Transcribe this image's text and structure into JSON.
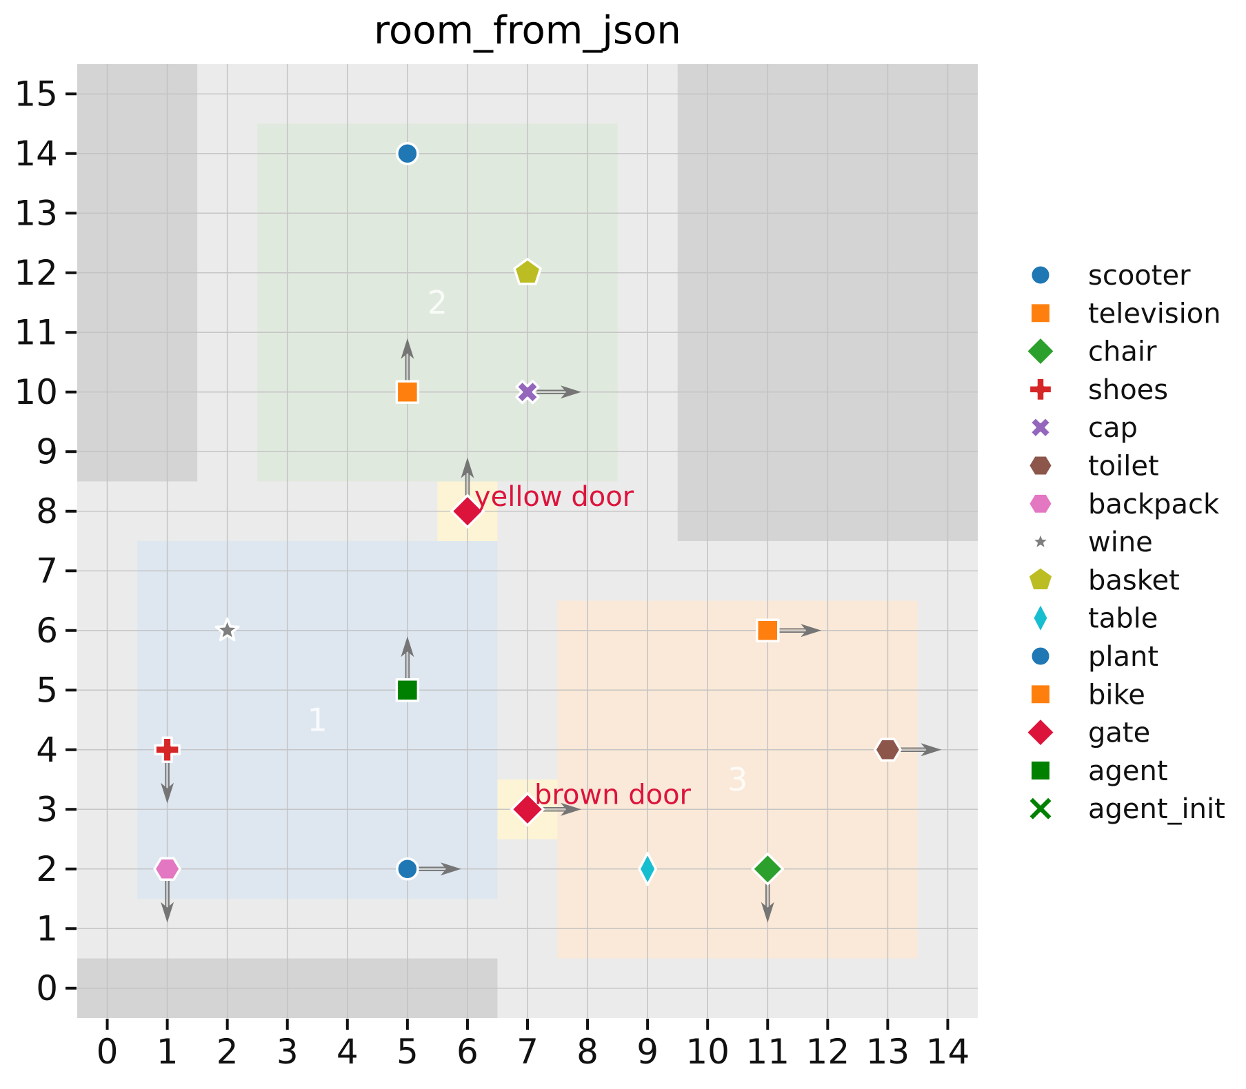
{
  "chart_data": {
    "type": "scatter",
    "title": "room_from_json",
    "xlabel": "",
    "ylabel": "",
    "x_ticks": [
      0,
      1,
      2,
      3,
      4,
      5,
      6,
      7,
      8,
      9,
      10,
      11,
      12,
      13,
      14
    ],
    "y_ticks": [
      0,
      1,
      2,
      3,
      4,
      5,
      6,
      7,
      8,
      9,
      10,
      11,
      12,
      13,
      14,
      15
    ],
    "xlim": [
      -0.5,
      14.5
    ],
    "ylim": [
      -0.5,
      15.5
    ],
    "grid": true,
    "legend_position": "right-outside",
    "colors": {
      "figure_background": "#ffffff",
      "bounds_background": "#ebebeb",
      "obstacle": "#d4d4d4",
      "gridline": "#c2c2c2",
      "tick_text": "#111111",
      "arrow": "#757575",
      "door_patch": "#fdf3d5",
      "door_label": "#dc143c",
      "room_label": "#ffffff"
    },
    "bounds_rect": {
      "x0": -0.5,
      "y0": -0.5,
      "x1": 14.5,
      "y1": 15.5
    },
    "obstacles": [
      {
        "name": "obstacle-top-left",
        "x0": -0.5,
        "y0": 8.5,
        "x1": 1.5,
        "y1": 15.5
      },
      {
        "name": "obstacle-top-right",
        "x0": 9.5,
        "y0": 7.5,
        "x1": 14.5,
        "y1": 15.5
      },
      {
        "name": "obstacle-bottom",
        "x0": -0.5,
        "y0": -0.5,
        "x1": 6.5,
        "y1": 0.5
      }
    ],
    "rooms": [
      {
        "label": "1",
        "x0": 0.5,
        "y0": 1.5,
        "x1": 6.5,
        "y1": 7.5,
        "color": "#dee7f0",
        "label_x": 3.5,
        "label_y": 4.5
      },
      {
        "label": "2",
        "x0": 2.5,
        "y0": 8.5,
        "x1": 8.5,
        "y1": 14.5,
        "color": "#e0e9dd",
        "label_x": 5.5,
        "label_y": 11.5
      },
      {
        "label": "3",
        "x0": 7.5,
        "y0": 0.5,
        "x1": 13.5,
        "y1": 6.5,
        "color": "#fae9d8",
        "label_x": 10.5,
        "label_y": 3.5
      }
    ],
    "doors": [
      {
        "label": "yellow door",
        "x": 6,
        "y": 8,
        "patch": {
          "x0": 5.5,
          "y0": 7.5,
          "x1": 6.5,
          "y1": 8.5
        },
        "marker": "diamond",
        "color": "#dc143c",
        "orientation": "up"
      },
      {
        "label": "brown door",
        "x": 7,
        "y": 3,
        "patch": {
          "x0": 6.5,
          "y0": 2.5,
          "x1": 7.5,
          "y1": 3.5
        },
        "marker": "diamond",
        "color": "#dc143c",
        "orientation": "right"
      }
    ],
    "objects": [
      {
        "name": "scooter",
        "marker": "circle",
        "color": "#1f77b4",
        "x": 5,
        "y": 14,
        "orientation": null,
        "size": 1
      },
      {
        "name": "basket",
        "marker": "pentagon",
        "color": "#bcbd22",
        "x": 7,
        "y": 12,
        "orientation": null,
        "size": 1
      },
      {
        "name": "bike",
        "marker": "square",
        "color": "#ff7f0e",
        "x": 5,
        "y": 10,
        "orientation": "up",
        "size": 1
      },
      {
        "name": "cap",
        "marker": "x",
        "color": "#9467bd",
        "x": 7,
        "y": 10,
        "orientation": "right",
        "size": 1
      },
      {
        "name": "wine",
        "marker": "star",
        "color": "#7f7f7f",
        "x": 2,
        "y": 6,
        "orientation": null,
        "size": 0.9
      },
      {
        "name": "television",
        "marker": "square",
        "color": "#ff7f0e",
        "x": 11,
        "y": 6,
        "orientation": "right",
        "size": 1
      },
      {
        "name": "agent",
        "marker": "square",
        "color": "#008000",
        "x": 5,
        "y": 5,
        "orientation": "up",
        "size": 1
      },
      {
        "name": "shoes",
        "marker": "plus",
        "color": "#d62728",
        "x": 1,
        "y": 4,
        "orientation": "down",
        "size": 1
      },
      {
        "name": "toilet",
        "marker": "hexagon",
        "color": "#8c564b",
        "x": 13,
        "y": 4,
        "orientation": "right",
        "size": 1
      },
      {
        "name": "backpack",
        "marker": "hexagon",
        "color": "#e377c2",
        "x": 1,
        "y": 2,
        "orientation": "down",
        "size": 1
      },
      {
        "name": "plant",
        "marker": "circle",
        "color": "#1f77b4",
        "x": 5,
        "y": 2,
        "orientation": "right",
        "size": 1
      },
      {
        "name": "table",
        "marker": "thin-diamond",
        "color": "#17becf",
        "x": 9,
        "y": 2,
        "orientation": null,
        "size": 1
      },
      {
        "name": "chair",
        "marker": "diamond",
        "color": "#2ca02c",
        "x": 11,
        "y": 2,
        "orientation": "down",
        "size": 1
      }
    ],
    "legend": [
      {
        "label": "scooter",
        "marker": "circle",
        "color": "#1f77b4",
        "size": 1
      },
      {
        "label": "television",
        "marker": "square",
        "color": "#ff7f0e",
        "size": 1
      },
      {
        "label": "chair",
        "marker": "diamond",
        "color": "#2ca02c",
        "size": 1
      },
      {
        "label": "shoes",
        "marker": "plus",
        "color": "#d62728",
        "size": 1
      },
      {
        "label": "cap",
        "marker": "x",
        "color": "#9467bd",
        "size": 1
      },
      {
        "label": "toilet",
        "marker": "hexagon",
        "color": "#8c564b",
        "size": 1
      },
      {
        "label": "backpack",
        "marker": "hexagon",
        "color": "#e377c2",
        "size": 1
      },
      {
        "label": "wine",
        "marker": "star",
        "color": "#7f7f7f",
        "size": 0.8
      },
      {
        "label": "basket",
        "marker": "pentagon",
        "color": "#bcbd22",
        "size": 1
      },
      {
        "label": "table",
        "marker": "thin-diamond",
        "color": "#17becf",
        "size": 1
      },
      {
        "label": "plant",
        "marker": "circle",
        "color": "#1f77b4",
        "size": 1
      },
      {
        "label": "bike",
        "marker": "square",
        "color": "#ff7f0e",
        "size": 1
      },
      {
        "label": "gate",
        "marker": "diamond",
        "color": "#dc143c",
        "size": 1
      },
      {
        "label": "agent",
        "marker": "square",
        "color": "#008000",
        "size": 1
      },
      {
        "label": "agent_init",
        "marker": "x-thin",
        "color": "#008000",
        "size": 1
      }
    ]
  }
}
